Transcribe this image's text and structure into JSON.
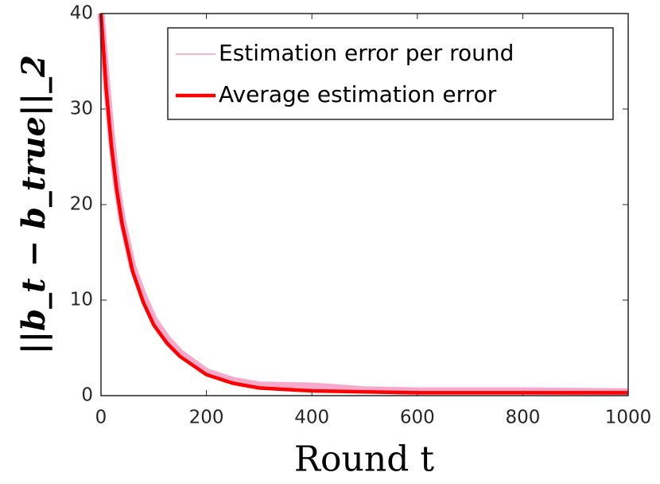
{
  "chart_data": {
    "type": "line",
    "xlabel": "Round t",
    "ylabel": "||b_t − b_true||_2",
    "x": [
      0,
      10,
      20,
      30,
      40,
      50,
      60,
      80,
      100,
      125,
      150,
      200,
      250,
      300,
      400,
      500,
      600,
      800,
      1000
    ],
    "series": [
      {
        "name": "Estimation error per round",
        "color": "#f49ac1",
        "values": [
          40,
          33,
          27,
          22,
          18.5,
          16,
          13.5,
          10.5,
          8,
          6,
          4.5,
          2.5,
          1.6,
          1.1,
          1.0,
          0.6,
          0.5,
          0.5,
          0.4
        ]
      },
      {
        "name": "Average estimation error",
        "color": "#ff0000",
        "values": [
          40,
          32,
          26,
          21.5,
          18,
          15.5,
          13,
          9.8,
          7.4,
          5.5,
          4.1,
          2.2,
          1.3,
          0.8,
          0.5,
          0.4,
          0.3,
          0.3,
          0.3
        ]
      }
    ],
    "xlim": [
      0,
      1000
    ],
    "xticks": [
      0,
      200,
      400,
      600,
      800,
      1000
    ],
    "ylim": [
      0,
      40
    ],
    "yticks": [
      0,
      10,
      20,
      30,
      40
    ],
    "legend": "upper right"
  }
}
